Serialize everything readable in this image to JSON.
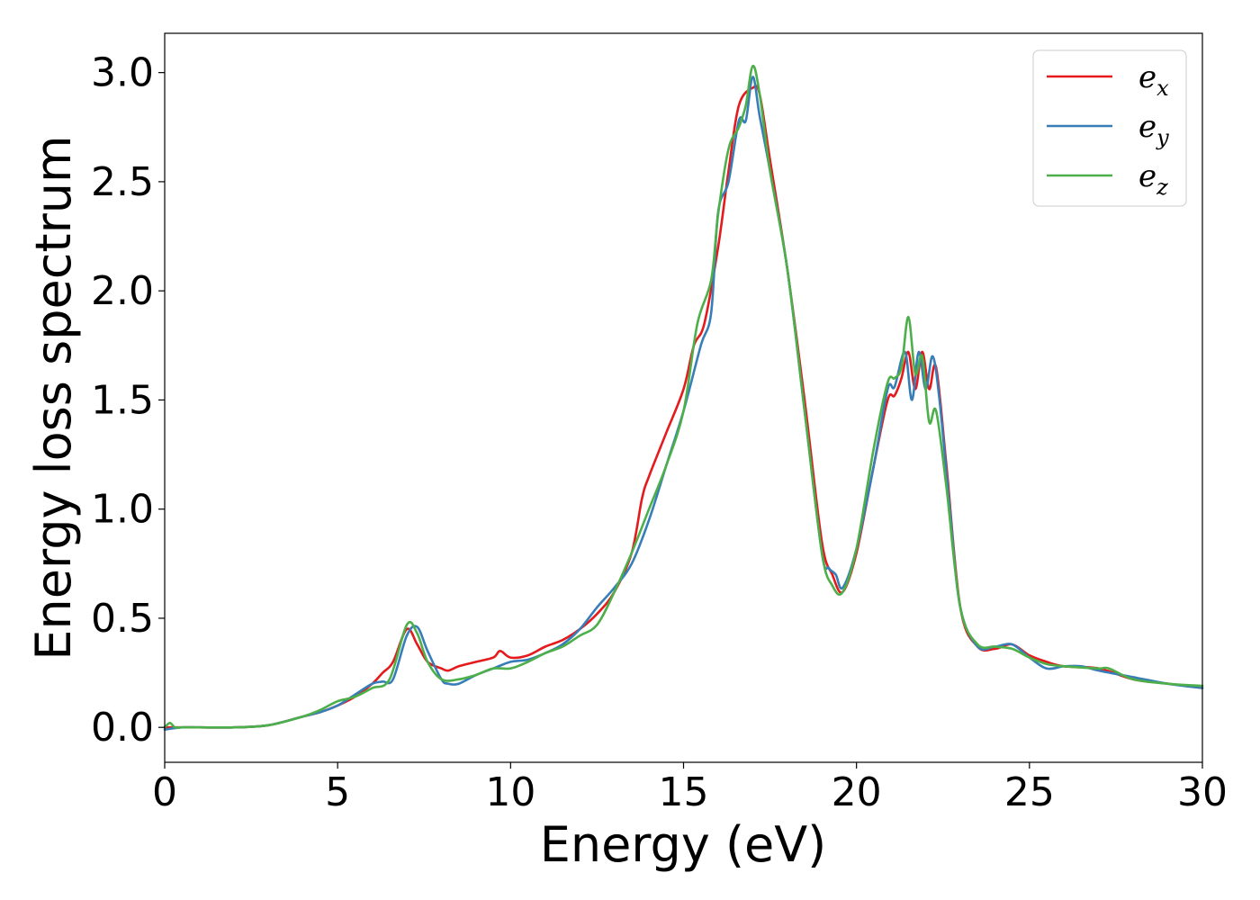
{
  "chart_data": {
    "type": "line",
    "xlabel": "Energy (eV)",
    "ylabel": "Energy loss spectrum",
    "xlim": [
      0,
      30
    ],
    "ylim": [
      -0.16,
      3.18
    ],
    "xticks": [
      0,
      5,
      10,
      15,
      20,
      25,
      30
    ],
    "xtick_labels": [
      "0",
      "5",
      "10",
      "15",
      "20",
      "25",
      "30"
    ],
    "yticks": [
      0.0,
      0.5,
      1.0,
      1.5,
      2.0,
      2.5,
      3.0
    ],
    "ytick_labels": [
      "0.0",
      "0.5",
      "1.0",
      "1.5",
      "2.0",
      "2.5",
      "3.0"
    ],
    "grid": false,
    "legend_position": "top-right",
    "series": [
      {
        "name": "e_x",
        "legend_base": "e",
        "legend_sub": "x",
        "color": "#e41a1c",
        "x": [
          0,
          0.5,
          1,
          2,
          3,
          4,
          4.5,
          5,
          5.5,
          6,
          6.3,
          6.6,
          7,
          7.3,
          7.6,
          8,
          8.2,
          8.5,
          9,
          9.5,
          9.7,
          10,
          10.5,
          11,
          11.5,
          12,
          12.5,
          13,
          13.5,
          13.8,
          14,
          14.5,
          15,
          15.3,
          15.6,
          16,
          16.3,
          16.6,
          17,
          17.2,
          17.5,
          18,
          18.5,
          19,
          19.3,
          19.6,
          20,
          20.5,
          20.9,
          21.1,
          21.3,
          21.5,
          21.7,
          21.9,
          22.1,
          22.3,
          22.6,
          23,
          23.5,
          24,
          24.5,
          25,
          25.5,
          26,
          27,
          28,
          29,
          30
        ],
        "y": [
          0.0,
          0.0,
          0.0,
          0.0,
          0.01,
          0.05,
          0.07,
          0.1,
          0.14,
          0.2,
          0.25,
          0.3,
          0.45,
          0.38,
          0.3,
          0.27,
          0.26,
          0.28,
          0.3,
          0.32,
          0.35,
          0.32,
          0.33,
          0.37,
          0.4,
          0.45,
          0.52,
          0.62,
          0.8,
          1.05,
          1.15,
          1.35,
          1.55,
          1.75,
          1.85,
          2.2,
          2.55,
          2.85,
          2.93,
          2.9,
          2.6,
          2.1,
          1.5,
          0.85,
          0.7,
          0.62,
          0.8,
          1.2,
          1.5,
          1.52,
          1.6,
          1.72,
          1.55,
          1.72,
          1.55,
          1.65,
          1.2,
          0.55,
          0.37,
          0.36,
          0.38,
          0.33,
          0.3,
          0.28,
          0.27,
          0.22,
          0.2,
          0.18
        ]
      },
      {
        "name": "e_y",
        "legend_base": "e",
        "legend_sub": "y",
        "color": "#377eb8",
        "x": [
          0,
          0.5,
          1,
          2,
          3,
          4,
          4.5,
          5,
          5.5,
          6,
          6.3,
          6.6,
          7,
          7.3,
          7.6,
          8,
          8.2,
          8.5,
          9,
          9.5,
          10,
          10.5,
          11,
          11.5,
          12,
          12.5,
          13,
          13.5,
          14,
          14.5,
          15,
          15.5,
          15.8,
          16,
          16.3,
          16.6,
          16.8,
          17,
          17.2,
          17.5,
          18,
          18.5,
          19,
          19.2,
          19.4,
          19.6,
          20,
          20.5,
          20.9,
          21.1,
          21.4,
          21.6,
          21.8,
          22,
          22.2,
          22.4,
          22.7,
          23,
          23.5,
          24,
          24.5,
          25,
          25.5,
          26,
          26.5,
          27,
          28,
          29,
          30
        ],
        "y": [
          -0.01,
          0.0,
          0.0,
          0.0,
          0.01,
          0.05,
          0.07,
          0.1,
          0.15,
          0.2,
          0.21,
          0.22,
          0.42,
          0.46,
          0.35,
          0.22,
          0.2,
          0.2,
          0.24,
          0.27,
          0.3,
          0.31,
          0.34,
          0.38,
          0.45,
          0.55,
          0.64,
          0.75,
          0.95,
          1.2,
          1.45,
          1.75,
          1.9,
          2.36,
          2.5,
          2.78,
          2.78,
          2.98,
          2.8,
          2.55,
          2.1,
          1.45,
          0.8,
          0.73,
          0.7,
          0.64,
          0.82,
          1.2,
          1.55,
          1.56,
          1.72,
          1.5,
          1.72,
          1.55,
          1.7,
          1.5,
          1.0,
          0.55,
          0.37,
          0.37,
          0.38,
          0.32,
          0.27,
          0.28,
          0.28,
          0.26,
          0.23,
          0.2,
          0.18
        ]
      },
      {
        "name": "e_z",
        "legend_base": "e",
        "legend_sub": "z",
        "color": "#4daf4a",
        "x": [
          0,
          0.15,
          0.3,
          0.5,
          1,
          2,
          3,
          4,
          4.5,
          5,
          5.5,
          6,
          6.5,
          7,
          7.3,
          7.6,
          8,
          8.5,
          9,
          9.5,
          10,
          10.5,
          11,
          11.5,
          12,
          12.5,
          13,
          13.5,
          14,
          14.5,
          15,
          15.4,
          15.8,
          16,
          16.3,
          16.6,
          16.8,
          17,
          17.2,
          17.5,
          18,
          18.5,
          19,
          19.3,
          19.6,
          20,
          20.5,
          20.9,
          21.1,
          21.3,
          21.5,
          21.7,
          21.9,
          22.1,
          22.3,
          22.6,
          23,
          23.5,
          24,
          24.5,
          25,
          25.5,
          26,
          27,
          27.3,
          28,
          29,
          30
        ],
        "y": [
          0.0,
          0.02,
          0.0,
          0.0,
          0.0,
          0.0,
          0.01,
          0.05,
          0.08,
          0.12,
          0.14,
          0.18,
          0.22,
          0.47,
          0.43,
          0.3,
          0.22,
          0.22,
          0.24,
          0.27,
          0.27,
          0.3,
          0.34,
          0.37,
          0.42,
          0.47,
          0.62,
          0.8,
          1.0,
          1.2,
          1.45,
          1.85,
          2.05,
          2.35,
          2.65,
          2.75,
          2.85,
          3.03,
          2.9,
          2.55,
          2.1,
          1.45,
          0.8,
          0.65,
          0.62,
          0.82,
          1.28,
          1.58,
          1.6,
          1.65,
          1.88,
          1.62,
          1.7,
          1.4,
          1.45,
          1.1,
          0.55,
          0.38,
          0.37,
          0.36,
          0.32,
          0.29,
          0.28,
          0.27,
          0.27,
          0.22,
          0.2,
          0.19
        ]
      }
    ]
  }
}
